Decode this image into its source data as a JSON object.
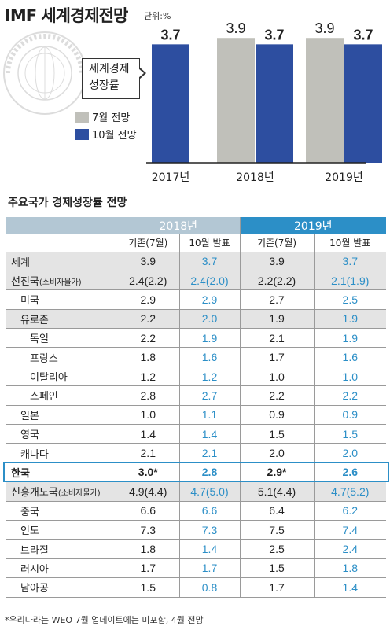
{
  "header": {
    "title": "IMF 세계경제전망",
    "unit": "단위:%"
  },
  "colors": {
    "july_bar": "#c0c0ba",
    "october_bar": "#2d4ea0",
    "year_2018_header": "#b3c7d4",
    "year_2019_header": "#2c8fc7",
    "revised_value": "#2c8fc7",
    "shaded_row": "#e4e4e4"
  },
  "chart_data": {
    "type": "bar",
    "categories": [
      "2017년",
      "2018년",
      "2019년"
    ],
    "series": [
      {
        "name": "7월 전망",
        "values": [
          null,
          3.9,
          3.9
        ]
      },
      {
        "name": "10월 전망",
        "values": [
          3.7,
          3.7,
          3.7
        ]
      }
    ],
    "annotation": "세계경제 성장률",
    "legend_placement": "left",
    "grid": false,
    "ylim": [
      0,
      4.2
    ]
  },
  "chart_labels": {
    "callout_line1": "세계경제",
    "callout_line2": "성장률",
    "legend_july": "7월 전망",
    "legend_october": "10월 전망"
  },
  "table": {
    "title": "주요국가 경제성장률 전망",
    "year_2018": "2018년",
    "year_2019": "2019년",
    "col_existing": "기존(7월)",
    "col_october": "10월 발표",
    "rows": [
      {
        "name": "세계",
        "note": "",
        "v18a": "3.9",
        "v18b": "3.7",
        "v19a": "3.9",
        "v19b": "3.7",
        "b18": "3.7",
        "b19": "3.7"
      },
      {
        "name": "선진국",
        "note": "(소비자물가)",
        "v18a": "2.4(2.2)",
        "v18b": "2.4(2.0)",
        "v19a": "2.2(2.2)",
        "v19b": "2.1(1.9)"
      },
      {
        "name": "미국",
        "note": "",
        "v18a": "2.9",
        "v18b": "2.9",
        "v19a": "2.7",
        "v19b": "2.5"
      },
      {
        "name": "유로존",
        "note": "",
        "v18a": "2.2",
        "v18b": "2.0",
        "v19a": "1.9",
        "v19b": "1.9"
      },
      {
        "name": "독일",
        "note": "",
        "v18a": "2.2",
        "v18b": "1.9",
        "v19a": "2.1",
        "v19b": "1.9"
      },
      {
        "name": "프랑스",
        "note": "",
        "v18a": "1.8",
        "v18b": "1.6",
        "v19a": "1.7",
        "v19b": "1.6"
      },
      {
        "name": "이탈리아",
        "note": "",
        "v18a": "1.2",
        "v18b": "1.2",
        "v19a": "1.0",
        "v19b": "1.0"
      },
      {
        "name": "스페인",
        "note": "",
        "v18a": "2.8",
        "v18b": "2.7",
        "v19a": "2.2",
        "v19b": "2.2"
      },
      {
        "name": "일본",
        "note": "",
        "v18a": "1.0",
        "v18b": "1.1",
        "v19a": "0.9",
        "v19b": "0.9"
      },
      {
        "name": "영국",
        "note": "",
        "v18a": "1.4",
        "v18b": "1.4",
        "v19a": "1.5",
        "v19b": "1.5"
      },
      {
        "name": "캐나다",
        "note": "",
        "v18a": "2.1",
        "v18b": "2.1",
        "v19a": "2.0",
        "v19b": "2.0"
      },
      {
        "name": "한국",
        "note": "",
        "v18a": "3.0*",
        "v18b": "2.8",
        "v19a": "2.9*",
        "v19b": "2.6"
      },
      {
        "name": "신흥개도국",
        "note": "(소비자물가)",
        "v18a": "4.9(4.4)",
        "v18b": "4.7(5.0)",
        "v19a": "5.1(4.4)",
        "v19b": "4.7(5.2)"
      },
      {
        "name": "중국",
        "note": "",
        "v18a": "6.6",
        "v18b": "6.6",
        "v19a": "6.4",
        "v19b": "6.2"
      },
      {
        "name": "인도",
        "note": "",
        "v18a": "7.3",
        "v18b": "7.3",
        "v19a": "7.5",
        "v19b": "7.4"
      },
      {
        "name": "브라질",
        "note": "",
        "v18a": "1.8",
        "v18b": "1.4",
        "v19a": "2.5",
        "v19b": "2.4"
      },
      {
        "name": "러시아",
        "note": "",
        "v18a": "1.7",
        "v18b": "1.7",
        "v19a": "1.5",
        "v19b": "1.8"
      },
      {
        "name": "남아공",
        "note": "",
        "v18a": "1.5",
        "v18b": "0.8",
        "v19a": "1.7",
        "v19b": "1.4"
      }
    ]
  },
  "footnote": "*우리나라는 WEO 7월 업데이트에는 미포함, 4월 전망"
}
